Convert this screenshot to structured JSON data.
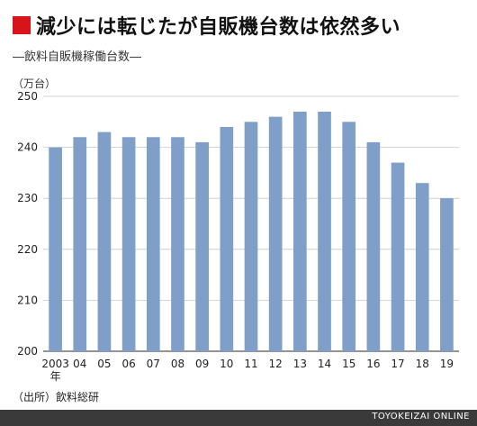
{
  "header": {
    "title": "減少には転じたが自販機台数は依然多い",
    "subtitle": "―飲料自販機稼働台数―"
  },
  "footer": {
    "source": "（出所）飲料総研",
    "credit": "TOYOKEIZAI ONLINE"
  },
  "colors": {
    "bar": "#7f9fc9",
    "accent": "#d7141a",
    "footer_bg": "#3a3a3a"
  },
  "chart_data": {
    "type": "bar",
    "title": "減少には転じたが自販機台数は依然多い",
    "subtitle": "―飲料自販機稼働台数―",
    "ylabel": "（万台）",
    "xlabel": "",
    "year_suffix": "年",
    "categories": [
      "2003",
      "04",
      "05",
      "06",
      "07",
      "08",
      "09",
      "10",
      "11",
      "12",
      "13",
      "14",
      "15",
      "16",
      "17",
      "18",
      "19"
    ],
    "values": [
      240,
      242,
      243,
      242,
      242,
      242,
      241,
      244,
      245,
      246,
      247,
      247,
      245,
      241,
      237,
      233,
      230
    ],
    "ylim": [
      200,
      250
    ],
    "yticks": [
      200,
      210,
      220,
      230,
      240,
      250
    ],
    "grid": true
  }
}
